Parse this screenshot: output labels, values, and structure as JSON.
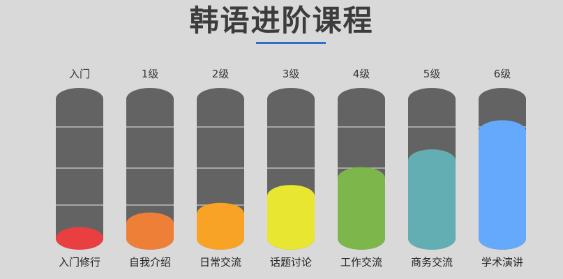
{
  "header": {
    "title": "韩语进阶课程"
  },
  "colors": {
    "tube": "#636363",
    "divider": "#bdbdbd",
    "underline": "#2f6fc8"
  },
  "levels": [
    {
      "level_label": "入门",
      "course": "入门修行",
      "fill_fraction": 0.14,
      "color": "#ea3f41"
    },
    {
      "level_label": "1级",
      "course": "自我介绍",
      "fill_fraction": 0.23,
      "color": "#ee7f37"
    },
    {
      "level_label": "2级",
      "course": "日常交流",
      "fill_fraction": 0.29,
      "color": "#f8a325"
    },
    {
      "level_label": "3级",
      "course": "话题讨论",
      "fill_fraction": 0.4,
      "color": "#e9e632"
    },
    {
      "level_label": "4级",
      "course": "工作交流",
      "fill_fraction": 0.51,
      "color": "#7db74c"
    },
    {
      "level_label": "5级",
      "course": "商务交流",
      "fill_fraction": 0.62,
      "color": "#62aeb3"
    },
    {
      "level_label": "6级",
      "course": "学术演讲",
      "fill_fraction": 0.8,
      "color": "#65a9fd"
    }
  ]
}
